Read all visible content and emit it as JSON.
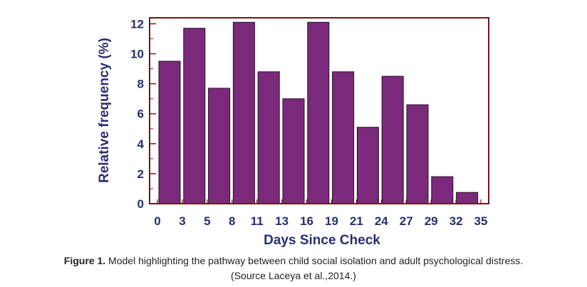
{
  "chart_data": {
    "type": "bar",
    "title": "",
    "xlabel": "Days Since Check",
    "ylabel": "Relative frequency (%)",
    "x_tick_labels": [
      "0",
      "3",
      "5",
      "8",
      "11",
      "13",
      "16",
      "19",
      "21",
      "24",
      "27",
      "29",
      "32",
      "35"
    ],
    "y_tick_labels": [
      "0",
      "2",
      "4",
      "6",
      "8",
      "10",
      "12"
    ],
    "ylim": [
      0,
      12.4
    ],
    "values": [
      9.5,
      11.7,
      7.7,
      12.1,
      8.8,
      7.0,
      12.1,
      8.8,
      5.1,
      8.5,
      6.6,
      1.8,
      0.75
    ],
    "grid": false,
    "colors": {
      "bar_fill": "#7b2a7b",
      "bar_stroke": "#2a0a2a",
      "axis": "#6b1a1a",
      "text": "#2a2e6e"
    }
  },
  "caption": {
    "label": "Figure 1.",
    "text": " Model highlighting the pathway between child social isolation and adult psychological distress.",
    "source": "(Source Laceya et al.,2014.)"
  }
}
